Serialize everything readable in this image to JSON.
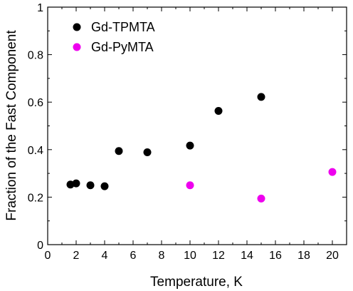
{
  "chart_data": {
    "type": "scatter",
    "xlabel": "Temperature, K",
    "ylabel": "Fraction of the Fast Component",
    "xlim": [
      0,
      21
    ],
    "ylim": [
      0,
      1
    ],
    "x_ticks": [
      0,
      2,
      4,
      6,
      8,
      10,
      12,
      14,
      16,
      18,
      20
    ],
    "x_tick_labels": [
      "0",
      "2",
      "4",
      "6",
      "8",
      "10",
      "12",
      "14",
      "16",
      "18",
      "20"
    ],
    "y_ticks": [
      0,
      0.2,
      0.4,
      0.6,
      0.8,
      1
    ],
    "y_tick_labels": [
      "0",
      "0.2",
      "0.4",
      "0.6",
      "0.8",
      "1"
    ],
    "grid": false,
    "legend_position": "top-left",
    "series": [
      {
        "name": "Gd-TPMTA",
        "color": "#000000",
        "points": [
          {
            "x": 1.6,
            "y": 0.253
          },
          {
            "x": 2.0,
            "y": 0.258
          },
          {
            "x": 3.0,
            "y": 0.25
          },
          {
            "x": 4.0,
            "y": 0.246
          },
          {
            "x": 5.0,
            "y": 0.394
          },
          {
            "x": 7.0,
            "y": 0.389
          },
          {
            "x": 10.0,
            "y": 0.417
          },
          {
            "x": 12.0,
            "y": 0.563
          },
          {
            "x": 15.0,
            "y": 0.622
          }
        ]
      },
      {
        "name": "Gd-PyMTA",
        "color": "#ee00ee",
        "points": [
          {
            "x": 10.0,
            "y": 0.25
          },
          {
            "x": 15.0,
            "y": 0.194
          },
          {
            "x": 20.0,
            "y": 0.306
          }
        ]
      }
    ]
  }
}
